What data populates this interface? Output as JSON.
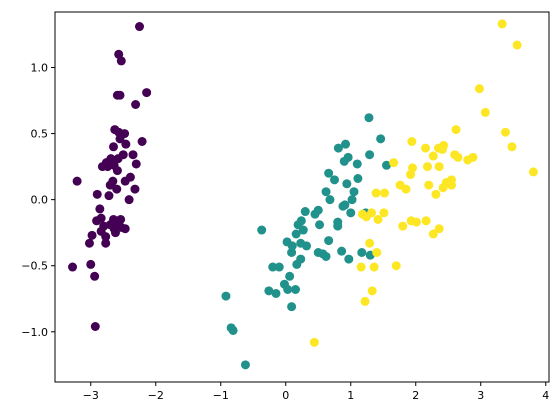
{
  "chart_data": {
    "type": "scatter",
    "title": "",
    "xlabel": "",
    "ylabel": "",
    "xlim": [
      -3.55,
      4.05
    ],
    "ylim": [
      -1.38,
      1.42
    ],
    "grid": false,
    "legend": "none",
    "xticks": [
      -3,
      -2,
      -1,
      0,
      1,
      2,
      3,
      4
    ],
    "xtick_labels": [
      "−3",
      "−2",
      "−1",
      "0",
      "1",
      "2",
      "3",
      "4"
    ],
    "yticks": [
      -1.0,
      -0.5,
      0.0,
      0.5,
      1.0
    ],
    "ytick_labels": [
      "−1.0",
      "−0.5",
      "0.0",
      "0.5",
      "1.0"
    ],
    "series": [
      {
        "color": "#440154",
        "points": [
          [
            -2.25,
            1.31
          ],
          [
            -2.57,
            1.1
          ],
          [
            -2.53,
            1.05
          ],
          [
            -2.14,
            0.81
          ],
          [
            -2.59,
            0.79
          ],
          [
            -2.55,
            0.79
          ],
          [
            -2.31,
            0.72
          ],
          [
            -2.63,
            0.53
          ],
          [
            -2.48,
            0.5
          ],
          [
            -2.57,
            0.51
          ],
          [
            -2.55,
            0.46
          ],
          [
            -2.21,
            0.44
          ],
          [
            -2.46,
            0.42
          ],
          [
            -2.65,
            0.4
          ],
          [
            -2.35,
            0.34
          ],
          [
            -2.69,
            0.31
          ],
          [
            -2.58,
            0.31
          ],
          [
            -2.5,
            0.34
          ],
          [
            -2.76,
            0.28
          ],
          [
            -2.64,
            0.26
          ],
          [
            -2.82,
            0.25
          ],
          [
            -2.74,
            0.25
          ],
          [
            -2.3,
            0.27
          ],
          [
            -2.59,
            0.22
          ],
          [
            -2.39,
            0.17
          ],
          [
            -2.66,
            0.14
          ],
          [
            -2.47,
            0.14
          ],
          [
            -3.21,
            0.14
          ],
          [
            -2.6,
            0.08
          ],
          [
            -2.7,
            0.11
          ],
          [
            -2.32,
            0.08
          ],
          [
            -2.9,
            0.04
          ],
          [
            -2.72,
            0.03
          ],
          [
            -2.41,
            0.0
          ],
          [
            -2.86,
            -0.07
          ],
          [
            -2.84,
            -0.14
          ],
          [
            -2.65,
            -0.15
          ],
          [
            -2.54,
            -0.15
          ],
          [
            -2.61,
            -0.17
          ],
          [
            -2.91,
            -0.16
          ],
          [
            -2.7,
            -0.19
          ],
          [
            -2.8,
            -0.2
          ],
          [
            -2.53,
            -0.21
          ],
          [
            -2.64,
            -0.22
          ],
          [
            -2.47,
            -0.22
          ],
          [
            -2.62,
            -0.25
          ],
          [
            -2.84,
            -0.24
          ],
          [
            -2.77,
            -0.28
          ],
          [
            -2.98,
            -0.27
          ],
          [
            -3.02,
            -0.33
          ],
          [
            -2.77,
            -0.33
          ],
          [
            -3.28,
            -0.51
          ],
          [
            -3.0,
            -0.49
          ],
          [
            -2.94,
            -0.58
          ],
          [
            -2.93,
            -0.96
          ]
        ]
      },
      {
        "color": "#21918c",
        "points": [
          [
            1.28,
            0.62
          ],
          [
            0.92,
            0.42
          ],
          [
            1.46,
            0.46
          ],
          [
            1.55,
            0.26
          ],
          [
            1.29,
            0.34
          ],
          [
            0.81,
            0.39
          ],
          [
            0.96,
            0.32
          ],
          [
            0.9,
            0.29
          ],
          [
            1.1,
            0.27
          ],
          [
            0.66,
            0.2
          ],
          [
            1.11,
            0.16
          ],
          [
            0.75,
            0.15
          ],
          [
            0.94,
            0.12
          ],
          [
            0.62,
            0.06
          ],
          [
            1.05,
            0.06
          ],
          [
            0.68,
            0.0
          ],
          [
            1.02,
            0.0
          ],
          [
            0.91,
            -0.04
          ],
          [
            0.5,
            -0.08
          ],
          [
            1.0,
            -0.1
          ],
          [
            0.3,
            -0.09
          ],
          [
            0.45,
            -0.11
          ],
          [
            1.23,
            -0.1
          ],
          [
            0.24,
            -0.16
          ],
          [
            0.19,
            -0.19
          ],
          [
            0.52,
            -0.19
          ],
          [
            0.8,
            -0.2
          ],
          [
            0.27,
            -0.23
          ],
          [
            -0.37,
            -0.23
          ],
          [
            0.16,
            -0.26
          ],
          [
            0.02,
            -0.32
          ],
          [
            0.1,
            -0.35
          ],
          [
            0.23,
            -0.33
          ],
          [
            0.32,
            -0.35
          ],
          [
            0.66,
            -0.31
          ],
          [
            0.09,
            -0.4
          ],
          [
            0.86,
            -0.39
          ],
          [
            0.57,
            -0.41
          ],
          [
            0.62,
            -0.43
          ],
          [
            0.23,
            -0.45
          ],
          [
            0.17,
            -0.49
          ],
          [
            1.17,
            -0.4
          ],
          [
            1.3,
            -0.42
          ],
          [
            0.97,
            -0.45
          ],
          [
            -0.1,
            -0.51
          ],
          [
            -0.2,
            -0.51
          ],
          [
            0.06,
            -0.58
          ],
          [
            -0.02,
            -0.64
          ],
          [
            0.03,
            -0.68
          ],
          [
            -0.26,
            -0.69
          ],
          [
            -0.15,
            -0.71
          ],
          [
            0.15,
            -0.68
          ],
          [
            0.09,
            -0.81
          ],
          [
            -0.92,
            -0.73
          ],
          [
            -0.84,
            -0.97
          ],
          [
            -0.81,
            -0.99
          ],
          [
            -0.62,
            -1.25
          ],
          [
            0.8,
            -0.17
          ],
          [
            0.5,
            -0.4
          ],
          [
            0.88,
            -0.05
          ]
        ]
      },
      {
        "color": "#fde725",
        "points": [
          [
            3.33,
            1.33
          ],
          [
            3.56,
            1.17
          ],
          [
            3.07,
            0.66
          ],
          [
            2.98,
            0.84
          ],
          [
            3.38,
            0.51
          ],
          [
            3.48,
            0.4
          ],
          [
            2.62,
            0.53
          ],
          [
            3.81,
            0.21
          ],
          [
            2.88,
            0.32
          ],
          [
            2.8,
            0.3
          ],
          [
            1.94,
            0.44
          ],
          [
            2.15,
            0.39
          ],
          [
            2.35,
            0.39
          ],
          [
            2.43,
            0.41
          ],
          [
            2.41,
            0.38
          ],
          [
            2.27,
            0.33
          ],
          [
            2.6,
            0.34
          ],
          [
            2.65,
            0.32
          ],
          [
            1.66,
            0.28
          ],
          [
            1.92,
            0.19
          ],
          [
            1.95,
            0.24
          ],
          [
            2.18,
            0.25
          ],
          [
            2.36,
            0.25
          ],
          [
            1.76,
            0.11
          ],
          [
            1.85,
            0.08
          ],
          [
            2.2,
            0.11
          ],
          [
            2.55,
            0.11
          ],
          [
            2.42,
            0.09
          ],
          [
            2.31,
            0.04
          ],
          [
            2.47,
            0.13
          ],
          [
            1.39,
            0.05
          ],
          [
            2.55,
            0.15
          ],
          [
            1.52,
            0.05
          ],
          [
            1.18,
            -0.11
          ],
          [
            1.32,
            -0.1
          ],
          [
            1.24,
            -0.13
          ],
          [
            1.42,
            -0.15
          ],
          [
            1.51,
            -0.1
          ],
          [
            1.93,
            -0.16
          ],
          [
            2.16,
            -0.16
          ],
          [
            2.01,
            -0.17
          ],
          [
            2.36,
            -0.22
          ],
          [
            1.8,
            -0.2
          ],
          [
            2.27,
            -0.26
          ],
          [
            1.4,
            -0.4
          ],
          [
            1.29,
            -0.33
          ],
          [
            1.36,
            -0.51
          ],
          [
            1.16,
            -0.51
          ],
          [
            1.7,
            -0.5
          ],
          [
            1.33,
            -0.69
          ],
          [
            1.22,
            -0.77
          ],
          [
            0.44,
            -1.08
          ]
        ]
      }
    ]
  }
}
